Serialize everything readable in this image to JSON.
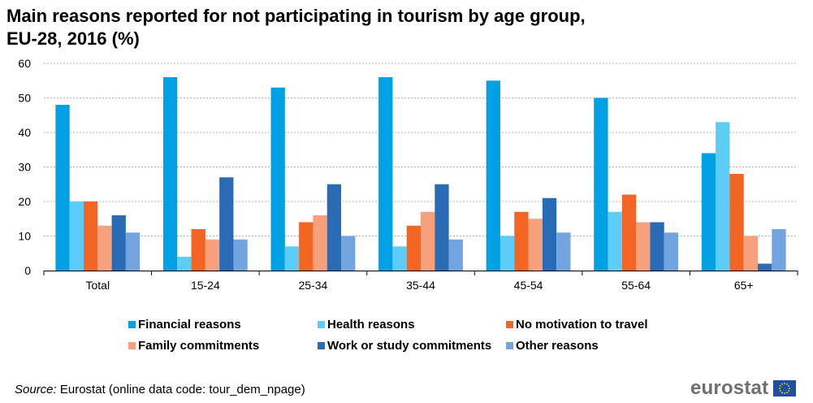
{
  "title_line1": "Main reasons reported for not participating in tourism by age group,",
  "title_line2": "EU-28, 2016 (%)",
  "source": {
    "label": "Source:",
    "text": " Eurostat (online data code: tour_dem_npage)"
  },
  "logo": {
    "text": "eurostat",
    "flag_icon": "eu-flag-icon"
  },
  "chart_data": {
    "type": "bar",
    "title": "Main reasons reported for not participating in tourism by age group, EU-28, 2016 (%)",
    "categories": [
      "Total",
      "15-24",
      "25-34",
      "35-44",
      "45-54",
      "55-64",
      "65+"
    ],
    "ylim": [
      0,
      60
    ],
    "yticks": [
      0,
      10,
      20,
      30,
      40,
      50,
      60
    ],
    "grid": true,
    "legend_position": "bottom",
    "series": [
      {
        "name": "Financial reasons",
        "color": "#00a1e4",
        "values": [
          48,
          56,
          53,
          56,
          55,
          50,
          34
        ]
      },
      {
        "name": "Health reasons",
        "color": "#5bcdf7",
        "values": [
          20,
          4,
          7,
          7,
          10,
          17,
          43
        ]
      },
      {
        "name": "No motivation to travel",
        "color": "#f26522",
        "values": [
          20,
          12,
          14,
          13,
          17,
          22,
          28
        ]
      },
      {
        "name": "Family commitments",
        "color": "#f7a07c",
        "values": [
          13,
          9,
          16,
          17,
          15,
          14,
          10
        ]
      },
      {
        "name": "Work or study commitments",
        "color": "#2a6bb5",
        "values": [
          16,
          27,
          25,
          25,
          21,
          14,
          2
        ]
      },
      {
        "name": "Other reasons",
        "color": "#72a4df",
        "values": [
          11,
          9,
          10,
          9,
          11,
          11,
          12
        ]
      }
    ]
  }
}
